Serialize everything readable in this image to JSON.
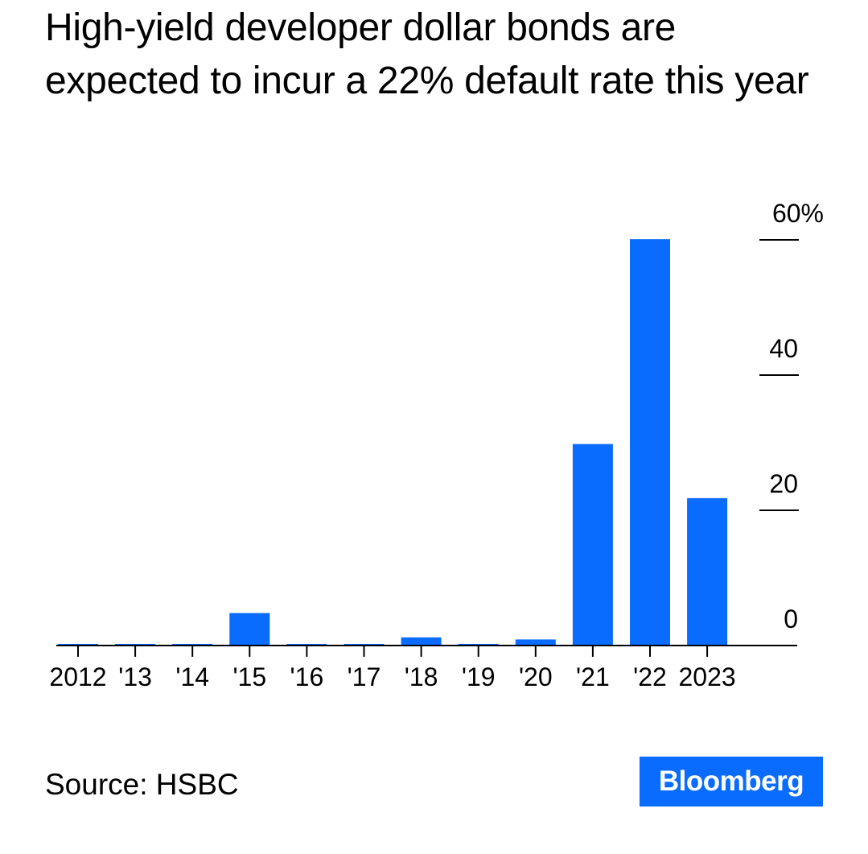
{
  "title": "High-yield developer dollar bonds are expected to incur a 22% default rate this year",
  "source": "Source: HSBC",
  "logo": "Bloomberg",
  "colors": {
    "bar": "#0a6cff",
    "axis": "#000000",
    "logo_bg": "#0a6cff"
  },
  "chart_data": {
    "type": "bar",
    "title": "High-yield developer dollar bonds are expected to incur a 22% default rate this year",
    "xlabel": "",
    "ylabel": "",
    "categories": [
      "2012",
      "'13",
      "'14",
      "'15",
      "'16",
      "'17",
      "'18",
      "'19",
      "'20",
      "'21",
      "'22",
      "2023"
    ],
    "values": [
      0,
      0,
      0,
      4.8,
      0,
      0,
      1.2,
      0,
      0.9,
      29.8,
      60.1,
      21.8
    ],
    "ylim": [
      0,
      60
    ],
    "yticks": [
      0,
      20,
      40,
      60
    ],
    "ytick_labels": [
      "0",
      "20",
      "40",
      "60%"
    ],
    "y_axis_position": "right",
    "grid": false,
    "legend": "none"
  }
}
